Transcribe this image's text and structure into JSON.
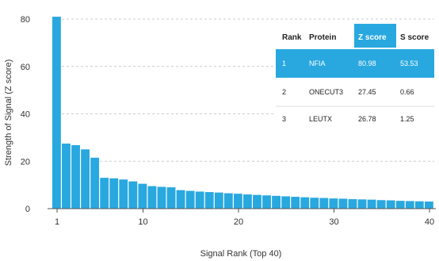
{
  "chart_data": {
    "type": "bar",
    "xlabel": "Signal Rank (Top 40)",
    "ylabel": "Strength of Signal (Z score)",
    "xlim": [
      1,
      40
    ],
    "ylim": [
      0,
      80
    ],
    "x_ticks": [
      1,
      10,
      20,
      30,
      40
    ],
    "y_ticks": [
      0,
      20,
      40,
      60,
      80
    ],
    "grid": "horizontal dashed",
    "bar_color": "#29a8df",
    "categories": [
      1,
      2,
      3,
      4,
      5,
      6,
      7,
      8,
      9,
      10,
      11,
      12,
      13,
      14,
      15,
      16,
      17,
      18,
      19,
      20,
      21,
      22,
      23,
      24,
      25,
      26,
      27,
      28,
      29,
      30,
      31,
      32,
      33,
      34,
      35,
      36,
      37,
      38,
      39,
      40
    ],
    "values": [
      80.98,
      27.45,
      26.78,
      25.0,
      21.5,
      13.0,
      12.8,
      12.3,
      11.5,
      10.5,
      9.5,
      9.2,
      9.0,
      7.8,
      7.5,
      7.2,
      7.0,
      6.8,
      6.5,
      6.3,
      6.0,
      5.8,
      5.6,
      5.4,
      5.2,
      5.0,
      4.8,
      4.6,
      4.5,
      4.3,
      4.2,
      4.0,
      3.9,
      3.8,
      3.6,
      3.5,
      3.3,
      3.2,
      3.1,
      3.0
    ]
  },
  "table": {
    "headers": [
      "Rank",
      "Protein",
      "Z score",
      "S score"
    ],
    "highlight_color": "#29a8df",
    "rows": [
      [
        "1",
        "NFIA",
        "80.98",
        "53.53"
      ],
      [
        "2",
        "ONECUT3",
        "27.45",
        "0.66"
      ],
      [
        "3",
        "LEUTX",
        "26.78",
        "1.25"
      ]
    ]
  }
}
